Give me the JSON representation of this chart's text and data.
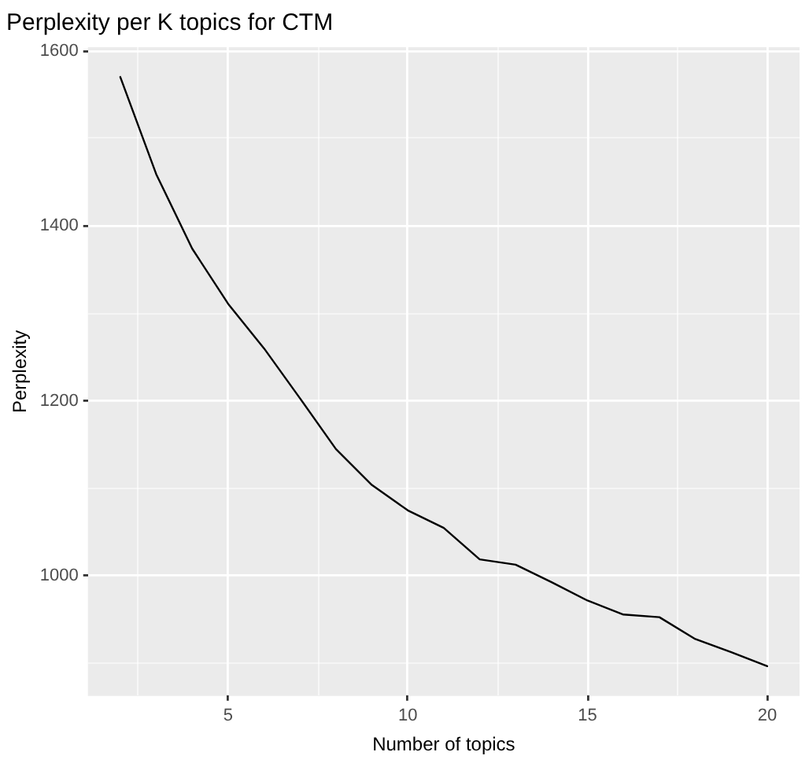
{
  "chart_data": {
    "type": "line",
    "title": "Perplexity per K topics for CTM",
    "xlabel": "Number of topics",
    "ylabel": "Perplexity",
    "x": [
      2,
      3,
      4,
      5,
      6,
      7,
      8,
      9,
      10,
      11,
      12,
      13,
      14,
      15,
      16,
      17,
      18,
      19,
      20
    ],
    "series": [
      {
        "color": "#000000",
        "values": [
          1570,
          1459,
          1374,
          1311,
          1260,
          1203,
          1145,
          1104,
          1075,
          1055,
          1019,
          1013,
          993,
          972,
          956,
          953,
          928,
          913,
          897
        ]
      }
    ],
    "xlim": [
      1.1,
      20.9
    ],
    "ylim": [
      863,
      1604
    ],
    "xticks": [
      {
        "value": 2.5,
        "label": null
      },
      5,
      {
        "value": 7.5,
        "label": null
      },
      10,
      {
        "value": 12.5,
        "label": null
      },
      15,
      {
        "value": 17.5,
        "label": null
      },
      20
    ],
    "yticks": [
      {
        "value": 900,
        "label": null
      },
      1000,
      {
        "value": 1100,
        "label": null
      },
      1200,
      {
        "value": 1300,
        "label": null
      },
      1400,
      {
        "value": 1500,
        "label": null
      },
      1600
    ],
    "grid": true,
    "legend": false,
    "marker": "none",
    "line_style": "solid"
  }
}
